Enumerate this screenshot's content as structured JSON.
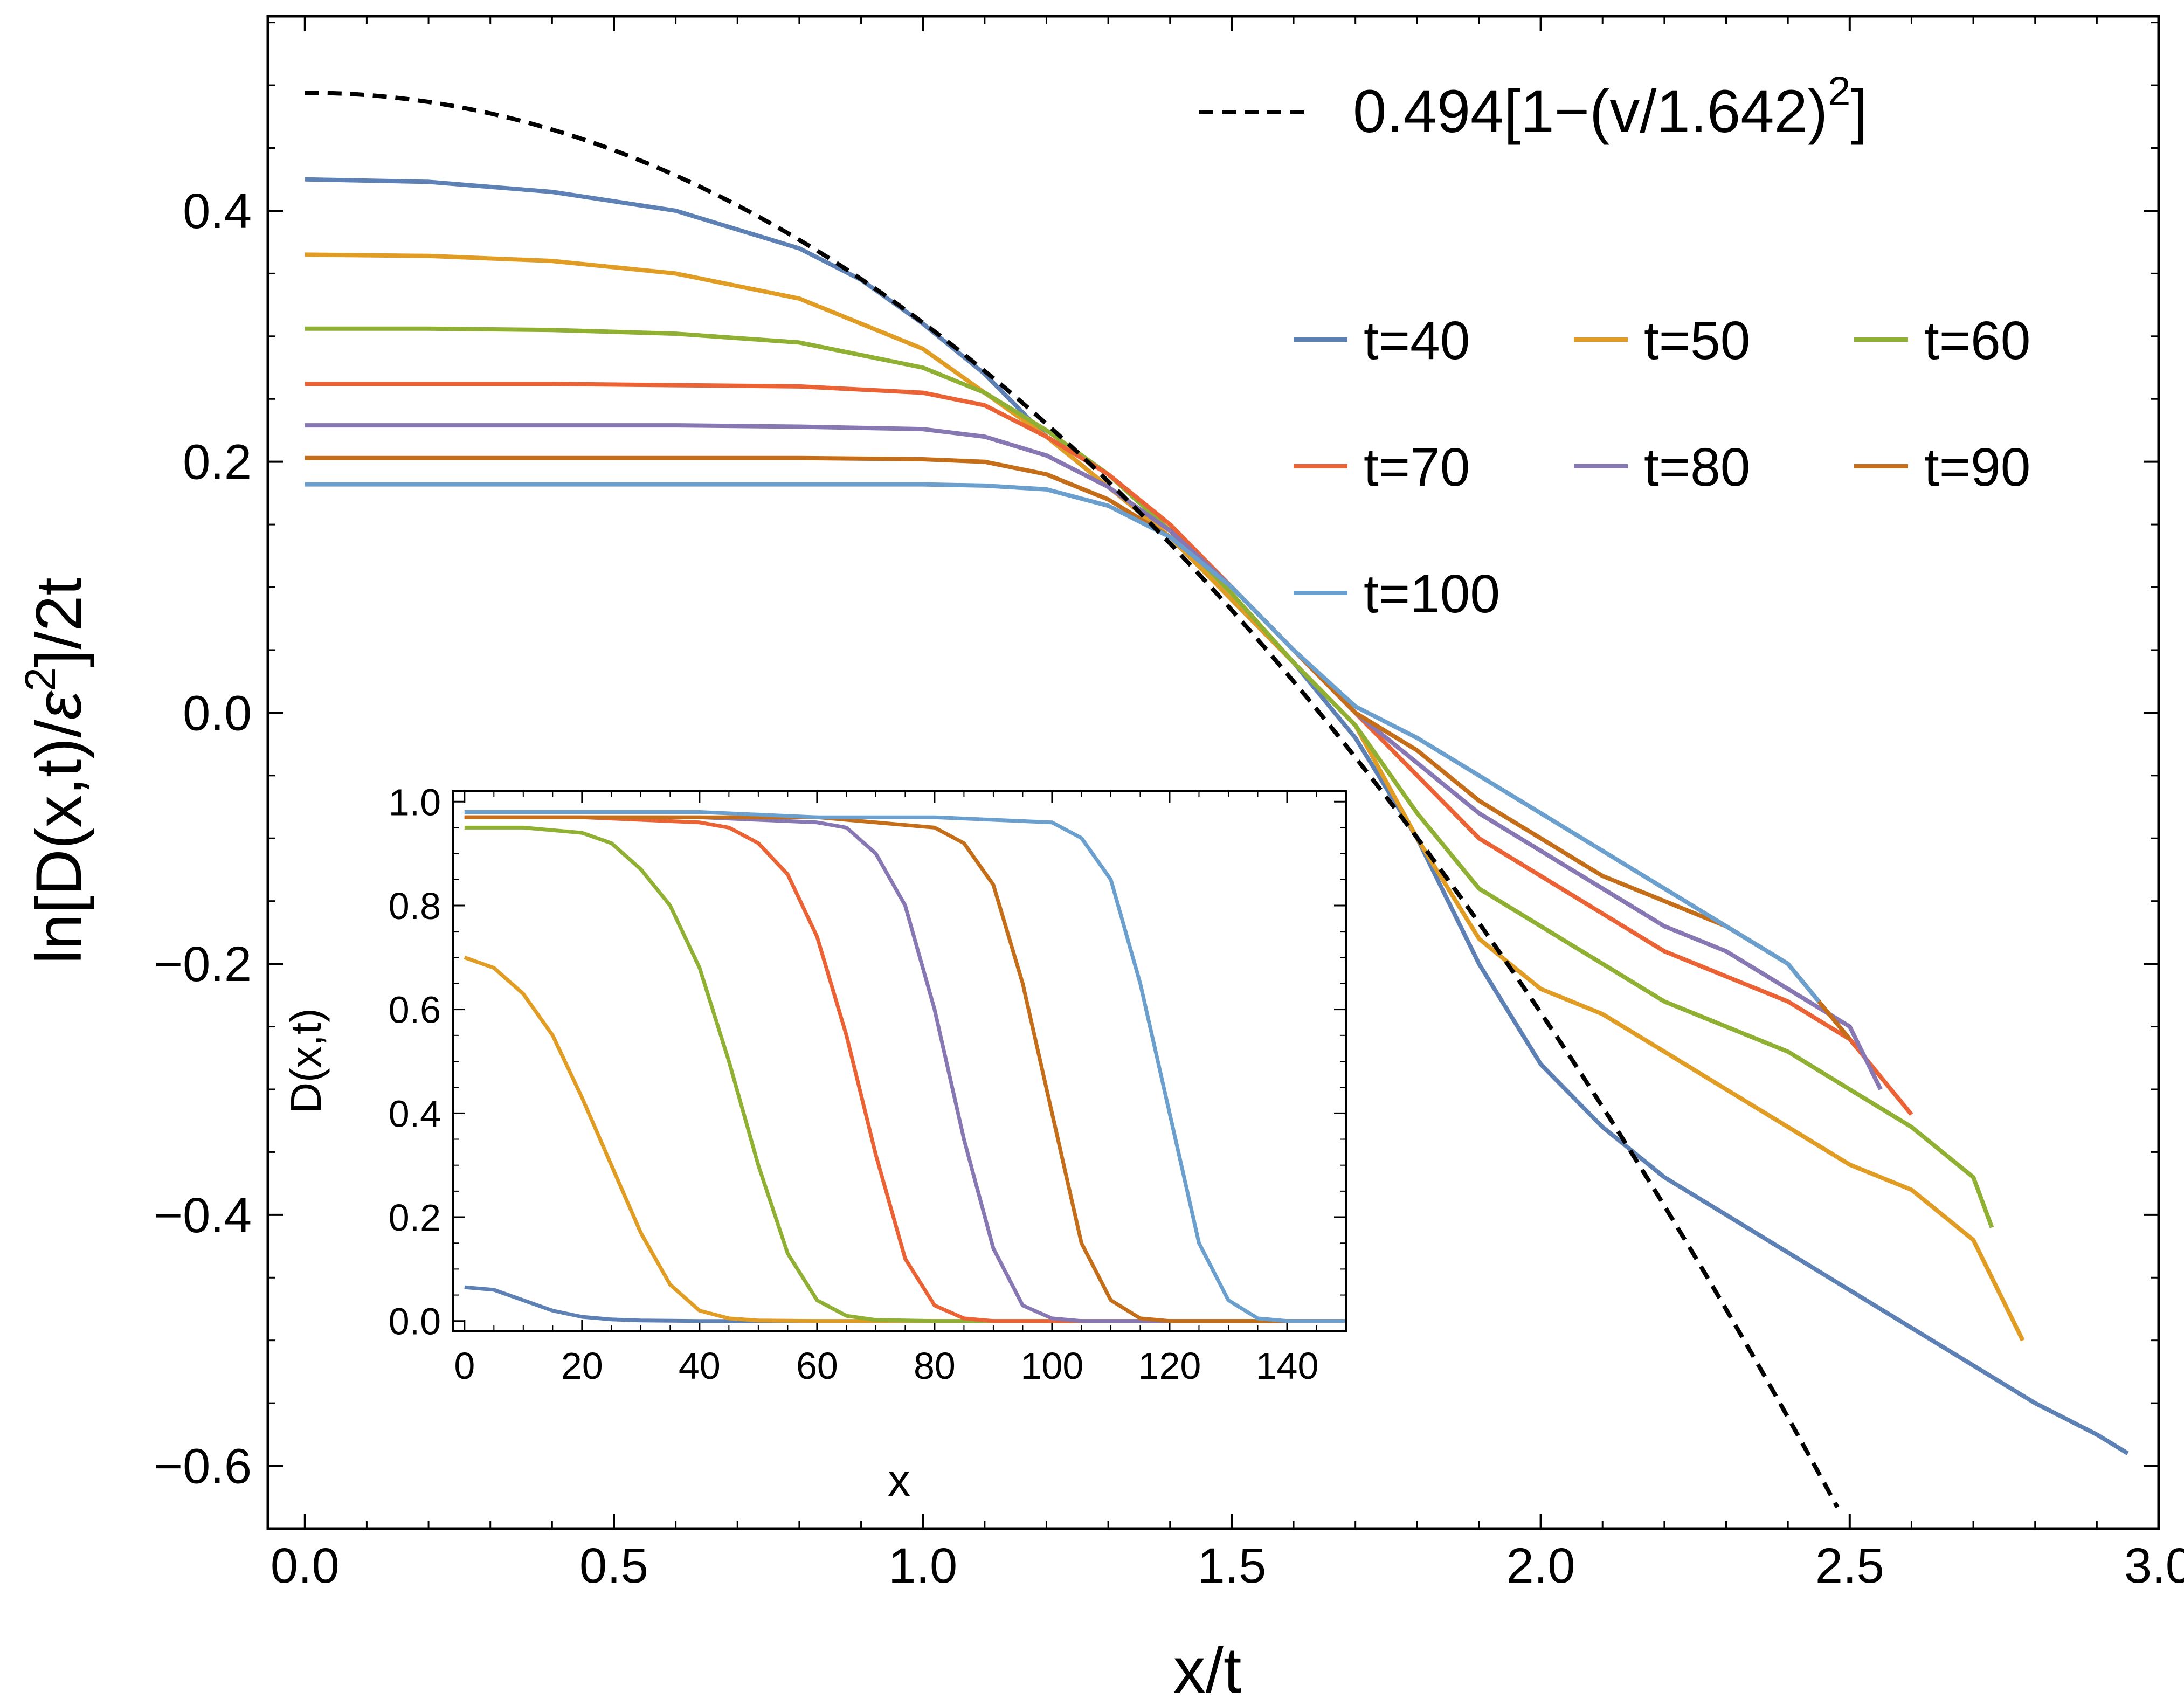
{
  "chart_data": [
    {
      "id": "main",
      "type": "line",
      "xlabel": "x/t",
      "ylabel": "ln[D(x,t)/ε²]/2t",
      "ylabel_parts": {
        "a": "ln[D(x,t)/",
        "eps": "ε",
        "sup": "2",
        "b": "]/2t"
      },
      "xlim": [
        -0.06,
        3.0
      ],
      "ylim": [
        -0.65,
        0.555
      ],
      "x_ticks": [
        0.0,
        0.5,
        1.0,
        1.5,
        2.0,
        2.5,
        3.0
      ],
      "x_tick_labels": [
        "0.0",
        "0.5",
        "1.0",
        "1.5",
        "2.0",
        "2.5",
        "3.0"
      ],
      "y_ticks": [
        -0.6,
        -0.4,
        -0.2,
        0.0,
        0.2,
        0.4
      ],
      "y_tick_labels": [
        "−0.6",
        "−0.4",
        "−0.2",
        "0.0",
        "0.2",
        "0.4"
      ],
      "fit": {
        "label_main": "0.494[1−(v/1.642)",
        "label_sup": "2",
        "label_end": "]",
        "A": 0.494,
        "v0": 1.642,
        "color": "#000000",
        "style": "dashed"
      },
      "series": [
        {
          "name": "t=40",
          "color": "#5e81b5",
          "x": [
            0,
            0.2,
            0.4,
            0.6,
            0.8,
            0.9,
            1.0,
            1.1,
            1.2,
            1.3,
            1.4,
            1.5,
            1.6,
            1.7,
            1.8,
            1.9,
            2.0,
            2.1,
            2.2,
            2.3,
            2.4,
            2.5,
            2.6,
            2.7,
            2.8,
            2.9,
            2.95
          ],
          "y": [
            0.425,
            0.423,
            0.415,
            0.4,
            0.37,
            0.345,
            0.31,
            0.27,
            0.22,
            0.18,
            0.14,
            0.09,
            0.04,
            -0.02,
            -0.1,
            -0.2,
            -0.28,
            -0.33,
            -0.37,
            -0.4,
            -0.43,
            -0.46,
            -0.49,
            -0.52,
            -0.55,
            -0.575,
            -0.59
          ]
        },
        {
          "name": "t=50",
          "color": "#e19c24",
          "x": [
            0,
            0.2,
            0.4,
            0.6,
            0.8,
            1.0,
            1.1,
            1.2,
            1.3,
            1.4,
            1.5,
            1.6,
            1.7,
            1.8,
            1.9,
            2.0,
            2.1,
            2.2,
            2.3,
            2.4,
            2.5,
            2.6,
            2.7,
            2.78
          ],
          "y": [
            0.365,
            0.364,
            0.36,
            0.35,
            0.33,
            0.29,
            0.255,
            0.22,
            0.18,
            0.14,
            0.09,
            0.04,
            -0.01,
            -0.1,
            -0.18,
            -0.22,
            -0.24,
            -0.27,
            -0.3,
            -0.33,
            -0.36,
            -0.38,
            -0.42,
            -0.5
          ]
        },
        {
          "name": "t=60",
          "color": "#8fb032",
          "x": [
            0,
            0.2,
            0.4,
            0.6,
            0.8,
            1.0,
            1.1,
            1.2,
            1.3,
            1.4,
            1.5,
            1.6,
            1.7,
            1.8,
            1.9,
            2.0,
            2.1,
            2.2,
            2.3,
            2.4,
            2.5,
            2.6,
            2.7,
            2.73
          ],
          "y": [
            0.306,
            0.306,
            0.305,
            0.302,
            0.295,
            0.275,
            0.255,
            0.225,
            0.19,
            0.145,
            0.095,
            0.04,
            -0.01,
            -0.08,
            -0.14,
            -0.17,
            -0.2,
            -0.23,
            -0.25,
            -0.27,
            -0.3,
            -0.33,
            -0.37,
            -0.41
          ]
        },
        {
          "name": "t=70",
          "color": "#eb6235",
          "x": [
            0,
            0.2,
            0.4,
            0.6,
            0.8,
            1.0,
            1.1,
            1.2,
            1.3,
            1.4,
            1.5,
            1.6,
            1.7,
            1.8,
            1.9,
            2.0,
            2.1,
            2.2,
            2.3,
            2.4,
            2.5,
            2.6
          ],
          "y": [
            0.262,
            0.262,
            0.262,
            0.261,
            0.26,
            0.255,
            0.245,
            0.22,
            0.19,
            0.15,
            0.1,
            0.05,
            0.0,
            -0.05,
            -0.1,
            -0.13,
            -0.16,
            -0.19,
            -0.21,
            -0.23,
            -0.26,
            -0.32
          ]
        },
        {
          "name": "t=80",
          "color": "#8778b3",
          "x": [
            0,
            0.2,
            0.4,
            0.6,
            0.8,
            1.0,
            1.1,
            1.2,
            1.3,
            1.4,
            1.5,
            1.6,
            1.7,
            1.8,
            1.9,
            2.0,
            2.1,
            2.2,
            2.3,
            2.4,
            2.5,
            2.55
          ],
          "y": [
            0.229,
            0.229,
            0.229,
            0.229,
            0.228,
            0.226,
            0.22,
            0.205,
            0.18,
            0.145,
            0.1,
            0.05,
            0.0,
            -0.04,
            -0.08,
            -0.11,
            -0.14,
            -0.17,
            -0.19,
            -0.22,
            -0.25,
            -0.3
          ]
        },
        {
          "name": "t=90",
          "color": "#c56e1a",
          "x": [
            0,
            0.2,
            0.4,
            0.6,
            0.8,
            1.0,
            1.1,
            1.2,
            1.3,
            1.4,
            1.5,
            1.6,
            1.7,
            1.8,
            1.9,
            2.0,
            2.1,
            2.2,
            2.3,
            2.4,
            2.5
          ],
          "y": [
            0.203,
            0.203,
            0.203,
            0.203,
            0.203,
            0.202,
            0.2,
            0.19,
            0.17,
            0.14,
            0.1,
            0.05,
            0.0,
            -0.03,
            -0.07,
            -0.1,
            -0.13,
            -0.15,
            -0.17,
            -0.2,
            -0.26
          ]
        },
        {
          "name": "t=100",
          "color": "#6b9fce",
          "x": [
            0,
            0.2,
            0.4,
            0.6,
            0.8,
            1.0,
            1.1,
            1.2,
            1.3,
            1.4,
            1.5,
            1.6,
            1.7,
            1.8,
            1.9,
            2.0,
            2.1,
            2.2,
            2.3,
            2.4,
            2.45
          ],
          "y": [
            0.182,
            0.182,
            0.182,
            0.182,
            0.182,
            0.182,
            0.181,
            0.178,
            0.165,
            0.14,
            0.1,
            0.05,
            0.005,
            -0.02,
            -0.05,
            -0.08,
            -0.11,
            -0.14,
            -0.17,
            -0.2,
            -0.23
          ]
        }
      ]
    },
    {
      "id": "inset",
      "type": "line",
      "xlabel": "x",
      "ylabel": "D(x,t)",
      "xlim": [
        -2,
        150
      ],
      "ylim": [
        -0.02,
        1.02
      ],
      "x_ticks": [
        0,
        20,
        40,
        60,
        80,
        100,
        120,
        140
      ],
      "x_tick_labels": [
        "0",
        "20",
        "40",
        "60",
        "80",
        "100",
        "120",
        "140"
      ],
      "y_ticks": [
        0.0,
        0.2,
        0.4,
        0.6,
        0.8,
        1.0
      ],
      "y_tick_labels": [
        "0.0",
        "0.2",
        "0.4",
        "0.6",
        "0.8",
        "1.0"
      ],
      "series": [
        {
          "name": "t=40",
          "color": "#5e81b5",
          "x": [
            0,
            5,
            10,
            15,
            20,
            25,
            30,
            40,
            60,
            80,
            100,
            120,
            150
          ],
          "y": [
            0.065,
            0.06,
            0.04,
            0.02,
            0.008,
            0.003,
            0.001,
            0,
            0,
            0,
            0,
            0,
            0
          ]
        },
        {
          "name": "t=50",
          "color": "#e19c24",
          "x": [
            0,
            5,
            10,
            15,
            20,
            25,
            30,
            35,
            40,
            45,
            50,
            60,
            80,
            150
          ],
          "y": [
            0.7,
            0.68,
            0.63,
            0.55,
            0.43,
            0.3,
            0.17,
            0.07,
            0.02,
            0.005,
            0.001,
            0,
            0,
            0
          ]
        },
        {
          "name": "t=60",
          "color": "#8fb032",
          "x": [
            0,
            10,
            20,
            25,
            30,
            35,
            40,
            45,
            50,
            55,
            60,
            65,
            70,
            80,
            150
          ],
          "y": [
            0.95,
            0.95,
            0.94,
            0.92,
            0.87,
            0.8,
            0.68,
            0.5,
            0.3,
            0.13,
            0.04,
            0.01,
            0.002,
            0,
            0
          ]
        },
        {
          "name": "t=70",
          "color": "#eb6235",
          "x": [
            0,
            20,
            40,
            45,
            50,
            55,
            60,
            65,
            70,
            75,
            80,
            85,
            90,
            150
          ],
          "y": [
            0.97,
            0.97,
            0.96,
            0.95,
            0.92,
            0.86,
            0.74,
            0.55,
            0.32,
            0.12,
            0.03,
            0.005,
            0,
            0
          ]
        },
        {
          "name": "t=80",
          "color": "#8778b3",
          "x": [
            0,
            20,
            40,
            60,
            65,
            70,
            75,
            80,
            85,
            90,
            95,
            100,
            105,
            150
          ],
          "y": [
            0.97,
            0.97,
            0.97,
            0.96,
            0.95,
            0.9,
            0.8,
            0.6,
            0.35,
            0.14,
            0.03,
            0.005,
            0,
            0
          ]
        },
        {
          "name": "t=90",
          "color": "#c56e1a",
          "x": [
            0,
            20,
            40,
            60,
            80,
            85,
            90,
            95,
            100,
            105,
            110,
            115,
            120,
            150
          ],
          "y": [
            0.97,
            0.97,
            0.97,
            0.97,
            0.95,
            0.92,
            0.84,
            0.65,
            0.4,
            0.15,
            0.04,
            0.005,
            0,
            0
          ]
        },
        {
          "name": "t=100",
          "color": "#6b9fce",
          "x": [
            0,
            20,
            40,
            60,
            80,
            100,
            105,
            110,
            115,
            120,
            125,
            130,
            135,
            140,
            150
          ],
          "y": [
            0.98,
            0.98,
            0.98,
            0.97,
            0.97,
            0.96,
            0.93,
            0.85,
            0.65,
            0.4,
            0.15,
            0.04,
            0.005,
            0,
            0
          ]
        }
      ]
    }
  ]
}
